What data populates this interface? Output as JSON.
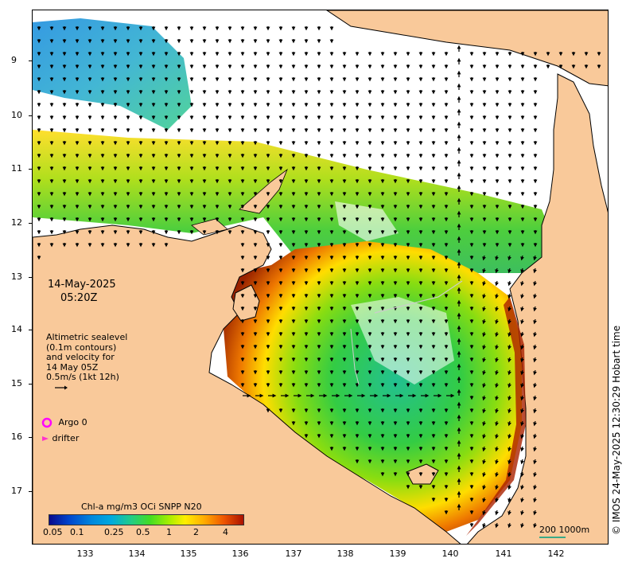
{
  "map": {
    "date": "14-May-2025",
    "time": "05:20Z",
    "legend_lines": [
      "Altimetric sealevel",
      "(0.1m contours)",
      "and velocity for",
      "14 May 05Z",
      "0.5m/s (1kt 12h)"
    ],
    "argo_label": "Argo 0",
    "drifter_label": "drifter",
    "colorbar_title": "Chl-a mg/m3 OCi SNPP N20",
    "colorbar_ticks": [
      "0.05",
      "0.1",
      "0.25",
      "0.5",
      "1",
      "2",
      "4"
    ],
    "scale_label": "200  1000m",
    "copyright": "© IMOS 24-May-2025 12:30:29 Hobart time",
    "lon_ticks": [
      "133",
      "134",
      "135",
      "136",
      "137",
      "138",
      "139",
      "140",
      "141",
      "142"
    ],
    "lat_ticks": [
      "9",
      "10",
      "11",
      "12",
      "13",
      "14",
      "15",
      "16",
      "17"
    ],
    "colors": {
      "land": "#f9c99a",
      "ocean_nodata": "#ffffff",
      "argo": "#ff00ff",
      "drifter": "#ff33cc"
    }
  }
}
